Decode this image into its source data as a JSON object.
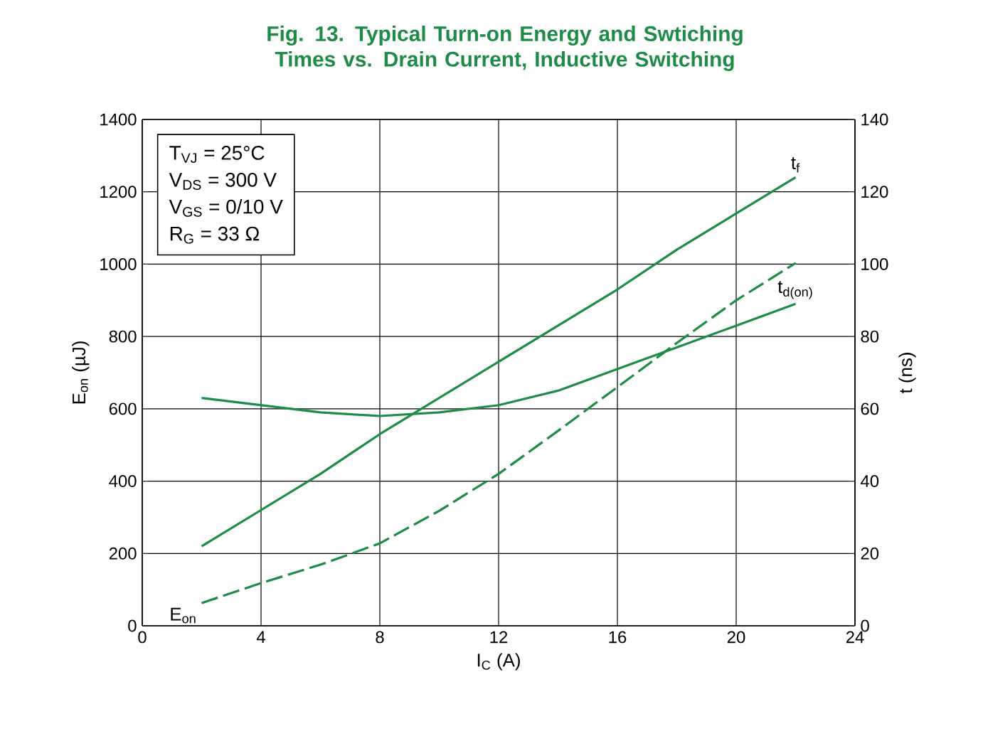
{
  "chart_data": {
    "type": "line",
    "title": "Fig. 13. Typical Turn-on Energy and Swtiching Times vs. Drain Current, Inductive Switching",
    "xlabel": "I$_{C}$ (A)",
    "ylabel": "E$_{on}$ (µJ)",
    "y2label": "t (ns)",
    "x": [
      2,
      4,
      6,
      8,
      10,
      12,
      14,
      16,
      18,
      20,
      22
    ],
    "series": [
      {
        "name": "E$_{on}$",
        "color": "#1e8c46",
        "line_style": "dashed",
        "values": [
          63,
          118,
          169,
          228,
          318,
          420,
          539,
          660,
          782,
          900,
          1003
        ]
      },
      {
        "name": "t$_{f}$",
        "color": "#1e8c46",
        "axis": "y2",
        "line_style": "solid",
        "values": [
          22,
          32,
          42,
          53,
          63,
          73,
          83,
          93,
          104,
          114,
          124
        ]
      },
      {
        "name": "t$_{d(on)}$",
        "color": "#1e8c46",
        "axis": "y2",
        "line_style": "solid",
        "values": [
          63,
          61,
          59,
          58,
          59,
          61,
          65,
          71,
          77,
          83,
          89
        ]
      }
    ],
    "xlim": [
      0,
      24
    ],
    "xticks": [
      0,
      4,
      8,
      12,
      16,
      20,
      24
    ],
    "ylim": [
      0,
      1400
    ],
    "yticks": [
      0,
      200,
      400,
      600,
      800,
      1000,
      1200,
      1400
    ],
    "y2lim": [
      0,
      140
    ],
    "y2ticks": [
      0,
      20,
      40,
      60,
      80,
      100,
      120,
      140
    ],
    "grid": true,
    "marker": "none",
    "annotations": [
      "T$_{VJ}$ = 25°C",
      "V$_{DS}$ = 300 V",
      "V$_{GS}$ = 0/10 V",
      "R$_{G}$ = 33 Ω"
    ]
  }
}
